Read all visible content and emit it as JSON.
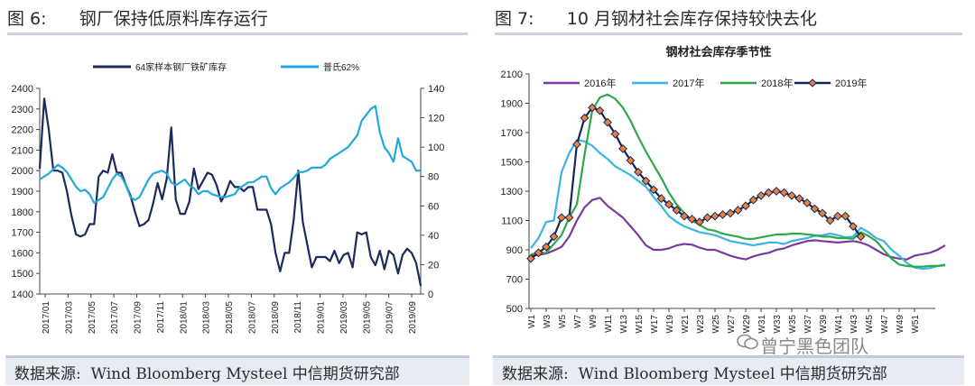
{
  "panels": {
    "left": {
      "title": "图 6:      钢厂保持低原料库存运行",
      "source": "数据来源:  Wind Bloomberg Mysteel 中信期货研究部"
    },
    "right": {
      "title": "图 7:      10 月钢材社会库存保持较快去化",
      "source": "数据来源:  Wind Bloomberg Mysteel 中信期货研究部"
    }
  },
  "watermark": "曾宁黑色团队",
  "chart_data": [
    {
      "type": "line",
      "title": "",
      "legend_position": "top",
      "x_tick_labels": [
        "2017/01",
        "2017/03",
        "2017/05",
        "2017/07",
        "2017/09",
        "2017/11",
        "2018/01",
        "2018/03",
        "2018/05",
        "2018/07",
        "2018/09",
        "2018/11",
        "2019/01",
        "2019/03",
        "2019/05",
        "2019/07",
        "2019/09"
      ],
      "y_left": {
        "min": 1400,
        "max": 2400,
        "ticks": [
          1400,
          1500,
          1600,
          1700,
          1800,
          1900,
          2000,
          2100,
          2200,
          2300,
          2400
        ]
      },
      "y_right": {
        "min": 0,
        "max": 140,
        "ticks": [
          0,
          20,
          40,
          60,
          80,
          100,
          120,
          140
        ]
      },
      "series": [
        {
          "name": "64家样本钢厂铁矿库存",
          "axis": "left",
          "color": "#1c2a5c",
          "values": [
            2010,
            2350,
            2200,
            2000,
            2000,
            1990,
            1900,
            1780,
            1690,
            1680,
            1690,
            1740,
            1740,
            1970,
            2000,
            1990,
            2080,
            1990,
            1990,
            1930,
            1880,
            1800,
            1730,
            1740,
            1760,
            1840,
            1940,
            1860,
            1960,
            2210,
            1860,
            1790,
            1790,
            1850,
            2010,
            1910,
            1950,
            1990,
            1980,
            1930,
            1850,
            1890,
            1950,
            1920,
            1920,
            1900,
            1920,
            1920,
            1810,
            1810,
            1810,
            1740,
            1600,
            1510,
            1600,
            1600,
            1760,
            2000,
            1750,
            1640,
            1530,
            1580,
            1580,
            1580,
            1560,
            1610,
            1550,
            1590,
            1600,
            1530,
            1700,
            1690,
            1700,
            1580,
            1540,
            1610,
            1520,
            1610,
            1590,
            1500,
            1590,
            1620,
            1600,
            1550,
            1440
          ]
        },
        {
          "name": "普氏62%",
          "axis": "right",
          "color": "#22a8dc",
          "values": [
            78,
            80,
            82,
            85,
            88,
            86,
            83,
            78,
            73,
            70,
            71,
            68,
            62,
            64,
            66,
            72,
            78,
            82,
            80,
            74,
            66,
            64,
            66,
            72,
            78,
            82,
            83,
            84,
            82,
            76,
            74,
            76,
            78,
            74,
            72,
            68,
            70,
            70,
            68,
            67,
            66,
            66,
            67,
            68,
            72,
            74,
            76,
            76,
            78,
            80,
            80,
            72,
            68,
            72,
            74,
            76,
            79,
            83,
            83,
            84,
            86,
            86,
            86,
            88,
            92,
            94,
            96,
            98,
            100,
            104,
            108,
            118,
            122,
            126,
            128,
            110,
            100,
            96,
            90,
            106,
            94,
            92,
            90,
            84,
            84
          ]
        }
      ]
    },
    {
      "type": "line",
      "title": "钢材社会库存季节性",
      "legend_position": "top",
      "x_tick_labels": [
        "W1",
        "W3",
        "W5",
        "W7",
        "W9",
        "W11",
        "W13",
        "W15",
        "W17",
        "W19",
        "W21",
        "W23",
        "W25",
        "W27",
        "W29",
        "W31",
        "W33",
        "W35",
        "W37",
        "W39",
        "W41",
        "W43",
        "W45",
        "W47",
        "W49",
        "W51"
      ],
      "y": {
        "min": 500,
        "max": 2100,
        "ticks": [
          500,
          700,
          900,
          1100,
          1300,
          1500,
          1700,
          1900,
          2100
        ]
      },
      "series": [
        {
          "name": "2016年",
          "color": "#7b3aa0",
          "x_start": 1,
          "values": [
            860,
            865,
            875,
            895,
            920,
            990,
            1100,
            1190,
            1240,
            1255,
            1200,
            1160,
            1120,
            1060,
            1000,
            930,
            900,
            900,
            910,
            930,
            940,
            935,
            915,
            900,
            900,
            880,
            860,
            845,
            835,
            855,
            870,
            880,
            900,
            910,
            930,
            945,
            960,
            965,
            960,
            955,
            950,
            955,
            960,
            950,
            930,
            900,
            870,
            850,
            840,
            835,
            860,
            870,
            880,
            900,
            930
          ]
        },
        {
          "name": "2017年",
          "color": "#3ab4e4",
          "x_start": 1,
          "values": [
            910,
            980,
            1090,
            1100,
            1430,
            1560,
            1650,
            1640,
            1610,
            1560,
            1520,
            1470,
            1440,
            1410,
            1370,
            1330,
            1260,
            1200,
            1130,
            1090,
            1060,
            1040,
            1020,
            1010,
            1000,
            980,
            960,
            950,
            940,
            930,
            940,
            950,
            950,
            940,
            960,
            970,
            980,
            995,
            1000,
            1010,
            1000,
            985,
            990,
            1050,
            1020,
            980,
            960,
            900,
            860,
            810,
            780,
            770,
            775,
            790,
            800
          ]
        },
        {
          "name": "2018年",
          "color": "#2ea84a",
          "x_start": 1,
          "values": [
            870,
            880,
            880,
            940,
            1000,
            1120,
            1210,
            1550,
            1850,
            1940,
            1960,
            1930,
            1870,
            1780,
            1670,
            1570,
            1480,
            1390,
            1290,
            1210,
            1150,
            1100,
            1070,
            1040,
            1030,
            1010,
            1000,
            990,
            975,
            975,
            985,
            995,
            1005,
            1005,
            1010,
            1010,
            1005,
            1000,
            990,
            990,
            980,
            980,
            975,
            1020,
            995,
            960,
            900,
            840,
            800,
            790,
            785,
            785,
            790,
            790,
            795
          ]
        },
        {
          "name": "2019年",
          "color": "#16255a",
          "x_start": 1,
          "marker": "diamond",
          "values": [
            840,
            880,
            920,
            990,
            1120,
            1120,
            1620,
            1800,
            1870,
            1850,
            1770,
            1690,
            1590,
            1510,
            1430,
            1370,
            1310,
            1250,
            1210,
            1170,
            1130,
            1110,
            1090,
            1120,
            1130,
            1140,
            1150,
            1170,
            1200,
            1240,
            1270,
            1290,
            1300,
            1290,
            1270,
            1250,
            1220,
            1180,
            1150,
            1100,
            1130,
            1130,
            1060,
            990
          ]
        }
      ]
    }
  ]
}
